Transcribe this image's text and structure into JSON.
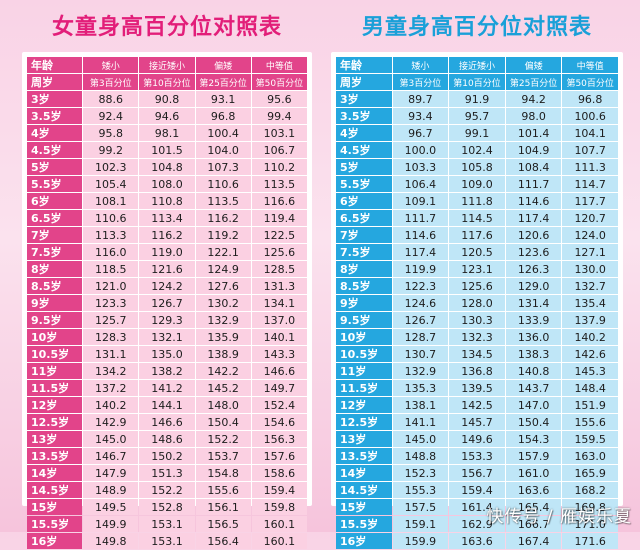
{
  "girls": {
    "title": "女童身高百分位对照表",
    "header1": [
      "年龄",
      "矮小",
      "接近矮小",
      "偏矮",
      "中等值"
    ],
    "header2": [
      "周岁",
      "第3百分位",
      "第10百分位",
      "第25百分位",
      "第50百分位"
    ],
    "rows": [
      [
        "3岁",
        "88.6",
        "90.8",
        "93.1",
        "95.6"
      ],
      [
        "3.5岁",
        "92.4",
        "94.6",
        "96.8",
        "99.4"
      ],
      [
        "4岁",
        "95.8",
        "98.1",
        "100.4",
        "103.1"
      ],
      [
        "4.5岁",
        "99.2",
        "101.5",
        "104.0",
        "106.7"
      ],
      [
        "5岁",
        "102.3",
        "104.8",
        "107.3",
        "110.2"
      ],
      [
        "5.5岁",
        "105.4",
        "108.0",
        "110.6",
        "113.5"
      ],
      [
        "6岁",
        "108.1",
        "110.8",
        "113.5",
        "116.6"
      ],
      [
        "6.5岁",
        "110.6",
        "113.4",
        "116.2",
        "119.4"
      ],
      [
        "7岁",
        "113.3",
        "116.2",
        "119.2",
        "122.5"
      ],
      [
        "7.5岁",
        "116.0",
        "119.0",
        "122.1",
        "125.6"
      ],
      [
        "8岁",
        "118.5",
        "121.6",
        "124.9",
        "128.5"
      ],
      [
        "8.5岁",
        "121.0",
        "124.2",
        "127.6",
        "131.3"
      ],
      [
        "9岁",
        "123.3",
        "126.7",
        "130.2",
        "134.1"
      ],
      [
        "9.5岁",
        "125.7",
        "129.3",
        "132.9",
        "137.0"
      ],
      [
        "10岁",
        "128.3",
        "132.1",
        "135.9",
        "140.1"
      ],
      [
        "10.5岁",
        "131.1",
        "135.0",
        "138.9",
        "143.3"
      ],
      [
        "11岁",
        "134.2",
        "138.2",
        "142.2",
        "146.6"
      ],
      [
        "11.5岁",
        "137.2",
        "141.2",
        "145.2",
        "149.7"
      ],
      [
        "12岁",
        "140.2",
        "144.1",
        "148.0",
        "152.4"
      ],
      [
        "12.5岁",
        "142.9",
        "146.6",
        "150.4",
        "154.6"
      ],
      [
        "13岁",
        "145.0",
        "148.6",
        "152.2",
        "156.3"
      ],
      [
        "13.5岁",
        "146.7",
        "150.2",
        "153.7",
        "157.6"
      ],
      [
        "14岁",
        "147.9",
        "151.3",
        "154.8",
        "158.6"
      ],
      [
        "14.5岁",
        "148.9",
        "152.2",
        "155.6",
        "159.4"
      ],
      [
        "15岁",
        "149.5",
        "152.8",
        "156.1",
        "159.8"
      ],
      [
        "15.5岁",
        "149.9",
        "153.1",
        "156.5",
        "160.1"
      ],
      [
        "16岁",
        "149.8",
        "153.1",
        "156.4",
        "160.1"
      ]
    ]
  },
  "boys": {
    "title": "男童身高百分位对照表",
    "header1": [
      "年龄",
      "矮小",
      "接近矮小",
      "偏矮",
      "中等值"
    ],
    "header2": [
      "周岁",
      "第3百分位",
      "第10百分位",
      "第25百分位",
      "第50百分位"
    ],
    "rows": [
      [
        "3岁",
        "89.7",
        "91.9",
        "94.2",
        "96.8"
      ],
      [
        "3.5岁",
        "93.4",
        "95.7",
        "98.0",
        "100.6"
      ],
      [
        "4岁",
        "96.7",
        "99.1",
        "101.4",
        "104.1"
      ],
      [
        "4.5岁",
        "100.0",
        "102.4",
        "104.9",
        "107.7"
      ],
      [
        "5岁",
        "103.3",
        "105.8",
        "108.4",
        "111.3"
      ],
      [
        "5.5岁",
        "106.4",
        "109.0",
        "111.7",
        "114.7"
      ],
      [
        "6岁",
        "109.1",
        "111.8",
        "114.6",
        "117.7"
      ],
      [
        "6.5岁",
        "111.7",
        "114.5",
        "117.4",
        "120.7"
      ],
      [
        "7岁",
        "114.6",
        "117.6",
        "120.6",
        "124.0"
      ],
      [
        "7.5岁",
        "117.4",
        "120.5",
        "123.6",
        "127.1"
      ],
      [
        "8岁",
        "119.9",
        "123.1",
        "126.3",
        "130.0"
      ],
      [
        "8.5岁",
        "122.3",
        "125.6",
        "129.0",
        "132.7"
      ],
      [
        "9岁",
        "124.6",
        "128.0",
        "131.4",
        "135.4"
      ],
      [
        "9.5岁",
        "126.7",
        "130.3",
        "133.9",
        "137.9"
      ],
      [
        "10岁",
        "128.7",
        "132.3",
        "136.0",
        "140.2"
      ],
      [
        "10.5岁",
        "130.7",
        "134.5",
        "138.3",
        "142.6"
      ],
      [
        "11岁",
        "132.9",
        "136.8",
        "140.8",
        "145.3"
      ],
      [
        "11.5岁",
        "135.3",
        "139.5",
        "143.7",
        "148.4"
      ],
      [
        "12岁",
        "138.1",
        "142.5",
        "147.0",
        "151.9"
      ],
      [
        "12.5岁",
        "141.1",
        "145.7",
        "150.4",
        "155.6"
      ],
      [
        "13岁",
        "145.0",
        "149.6",
        "154.3",
        "159.5"
      ],
      [
        "13.5岁",
        "148.8",
        "153.3",
        "157.9",
        "163.0"
      ],
      [
        "14岁",
        "152.3",
        "156.7",
        "161.0",
        "165.9"
      ],
      [
        "14.5岁",
        "155.3",
        "159.4",
        "163.6",
        "168.2"
      ],
      [
        "15岁",
        "157.5",
        "161.4",
        "165.4",
        "169.8"
      ],
      [
        "15.5岁",
        "159.1",
        "162.9",
        "166.7",
        "171.0"
      ],
      [
        "16岁",
        "159.9",
        "163.6",
        "167.4",
        "171.6"
      ]
    ]
  },
  "watermark": "快传号 / 雁娱乐夏"
}
